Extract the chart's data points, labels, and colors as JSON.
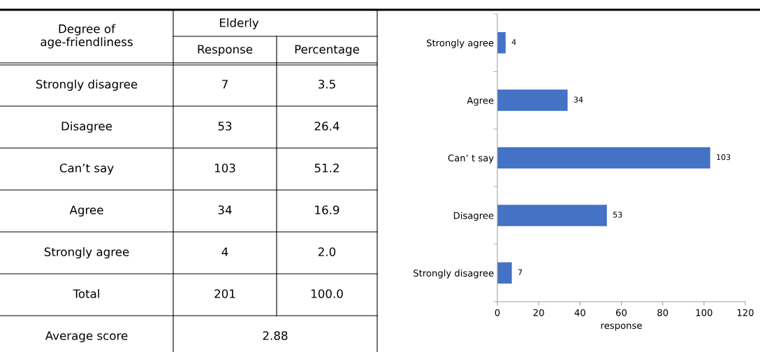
{
  "chart_data": [
    {
      "type": "other",
      "ylabel": "Degree of\nage-friendliness",
      "title": "Elderly",
      "categories": [
        "Strongly disagree",
        "Disagree",
        "Can’t say",
        "Agree",
        "Strongly agree",
        "Total"
      ],
      "series": [
        {
          "name": "Response",
          "values": [
            7,
            53,
            103,
            34,
            4,
            201
          ]
        },
        {
          "name": "Percentage",
          "values": [
            3.5,
            26.4,
            51.2,
            16.9,
            2.0,
            100.0
          ],
          "value_labels": [
            "3.5",
            "26.4",
            "51.2",
            "16.9",
            "2.0",
            "100.0"
          ]
        }
      ],
      "annotations": [
        "Average score",
        "2.88"
      ],
      "data_labels": true
    },
    {
      "type": "bar",
      "orientation": "horizontal",
      "xlabel": "response",
      "categories": [
        "Strongly agree",
        "Agree",
        "Can’ t say",
        "Disagree",
        "Strongly disagree"
      ],
      "values": [
        4,
        34,
        103,
        53,
        7
      ],
      "color": "#4472c4",
      "xlim": [
        0,
        120
      ],
      "xticks": [
        0,
        20,
        40,
        60,
        80,
        100,
        120
      ],
      "data_labels": true
    }
  ]
}
